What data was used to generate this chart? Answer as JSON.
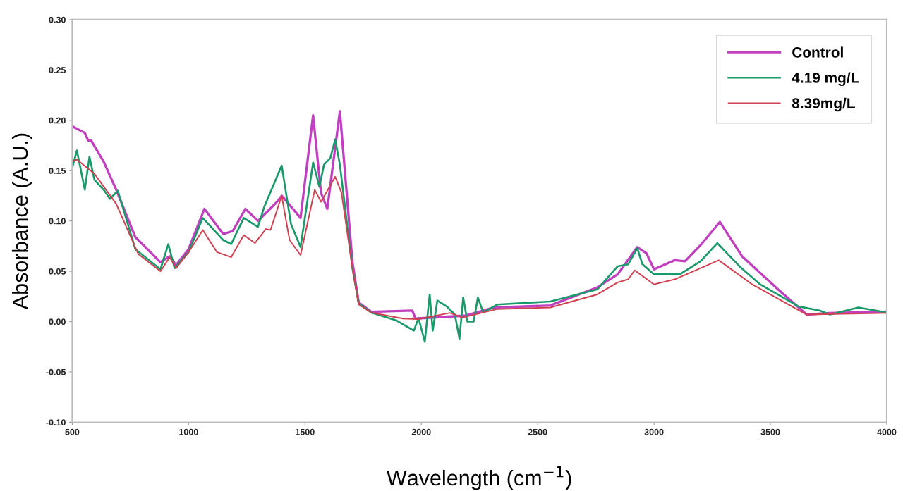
{
  "chart_data": {
    "type": "line",
    "xlabel": "Wavelength (cm$^{−1}$)",
    "ylabel": "Absorbance (A.U.)",
    "xlim": [
      500,
      4000
    ],
    "ylim": [
      -0.1,
      0.3
    ],
    "xticks": [
      500,
      1000,
      1500,
      2000,
      2500,
      3000,
      3500,
      4000
    ],
    "yticks": [
      {
        "value": -0.1,
        "label": "-0.10"
      },
      {
        "value": -0.05,
        "label": "-0.05"
      },
      {
        "value": 0,
        "label": "0.00"
      },
      {
        "value": 0.05,
        "label": "0.05"
      },
      {
        "value": 0.1,
        "label": "0.10"
      },
      {
        "value": 0.15,
        "label": "0.15"
      },
      {
        "value": 0.2,
        "label": "0.20"
      },
      {
        "value": 0.25,
        "label": "0.25"
      },
      {
        "value": 0.3,
        "label": "0.30"
      }
    ],
    "grid": false,
    "legend": "top right",
    "marker": "none",
    "line_style": "solid",
    "series": [
      {
        "name": "Control",
        "color": "#c040c0",
        "x": [
          500,
          554,
          568,
          581,
          635,
          689,
          771,
          879,
          919,
          946,
          1000,
          1068,
          1149,
          1190,
          1244,
          1298,
          1380,
          1400,
          1434,
          1481,
          1535,
          1569,
          1596,
          1650,
          1704,
          1731,
          1785,
          1961,
          1975,
          2191,
          2311,
          2554,
          2756,
          2844,
          2928,
          2967,
          3000,
          3089,
          3133,
          3200,
          3283,
          3378,
          3533,
          3656,
          3756,
          4000
        ],
        "values": [
          0.194,
          0.1875,
          0.18,
          0.18,
          0.159,
          0.131,
          0.084,
          0.059,
          0.065,
          0.056,
          0.072,
          0.112,
          0.087,
          0.09,
          0.112,
          0.1,
          0.119,
          0.125,
          0.116,
          0.103,
          0.205,
          0.128,
          0.112,
          0.209,
          0.059,
          0.019,
          0.0097,
          0.011,
          0.003,
          0.006,
          0.014,
          0.016,
          0.034,
          0.047,
          0.074,
          0.068,
          0.052,
          0.061,
          0.06,
          0.076,
          0.099,
          0.065,
          0.032,
          0.007,
          0.0085,
          0.0098
        ]
      },
      {
        "name": "4.19 mg/L",
        "color": "#1a9a6a",
        "x": [
          500,
          520,
          554,
          574,
          595,
          635,
          662,
          696,
          771,
          879,
          913,
          940,
          1000,
          1061,
          1149,
          1183,
          1237,
          1298,
          1325,
          1400,
          1440,
          1481,
          1535,
          1562,
          1582,
          1609,
          1630,
          1650,
          1704,
          1731,
          1785,
          1894,
          1968,
          1988,
          2015,
          2036,
          2049,
          2069,
          2110,
          2144,
          2164,
          2180,
          2198,
          2225,
          2243,
          2266,
          2327,
          2554,
          2756,
          2844,
          2889,
          2928,
          2950,
          3000,
          3111,
          3200,
          3272,
          3367,
          3456,
          3622,
          3711,
          3756,
          3878,
          4000
        ],
        "values": [
          0.153,
          0.17,
          0.131,
          0.164,
          0.141,
          0.131,
          0.122,
          0.13,
          0.072,
          0.052,
          0.077,
          0.053,
          0.069,
          0.103,
          0.081,
          0.077,
          0.103,
          0.094,
          0.114,
          0.155,
          0.097,
          0.074,
          0.158,
          0.134,
          0.156,
          0.1625,
          0.181,
          0.156,
          0.053,
          0.018,
          0.009,
          0.001,
          -0.009,
          0.0035,
          -0.02,
          0.027,
          -0.009,
          0.021,
          0.015,
          0.007,
          -0.017,
          0.024,
          0.0,
          0.0,
          0.024,
          0.009,
          0.017,
          0.02,
          0.032,
          0.055,
          0.057,
          0.073,
          0.057,
          0.047,
          0.047,
          0.06,
          0.078,
          0.055,
          0.037,
          0.015,
          0.011,
          0.007,
          0.014,
          0.009
        ]
      },
      {
        "name": "8.39mg/L",
        "color": "#d04050",
        "x": [
          500,
          520,
          595,
          689,
          784,
          879,
          919,
          946,
          1000,
          1061,
          1122,
          1183,
          1237,
          1285,
          1332,
          1352,
          1400,
          1434,
          1481,
          1542,
          1569,
          1596,
          1630,
          1657,
          1704,
          1731,
          1785,
          1921,
          1988,
          2123,
          2177,
          2327,
          2554,
          2756,
          2844,
          2889,
          2917,
          3000,
          3089,
          3278,
          3422,
          3656,
          4000
        ],
        "values": [
          0.159,
          0.161,
          0.147,
          0.117,
          0.067,
          0.05,
          0.064,
          0.053,
          0.069,
          0.091,
          0.069,
          0.064,
          0.086,
          0.078,
          0.092,
          0.091,
          0.125,
          0.081,
          0.066,
          0.131,
          0.119,
          0.13,
          0.144,
          0.128,
          0.053,
          0.017,
          0.009,
          0.003,
          0.0025,
          0.0087,
          0.004,
          0.0125,
          0.014,
          0.027,
          0.039,
          0.042,
          0.051,
          0.037,
          0.042,
          0.061,
          0.037,
          0.007,
          0.0085
        ]
      }
    ]
  }
}
